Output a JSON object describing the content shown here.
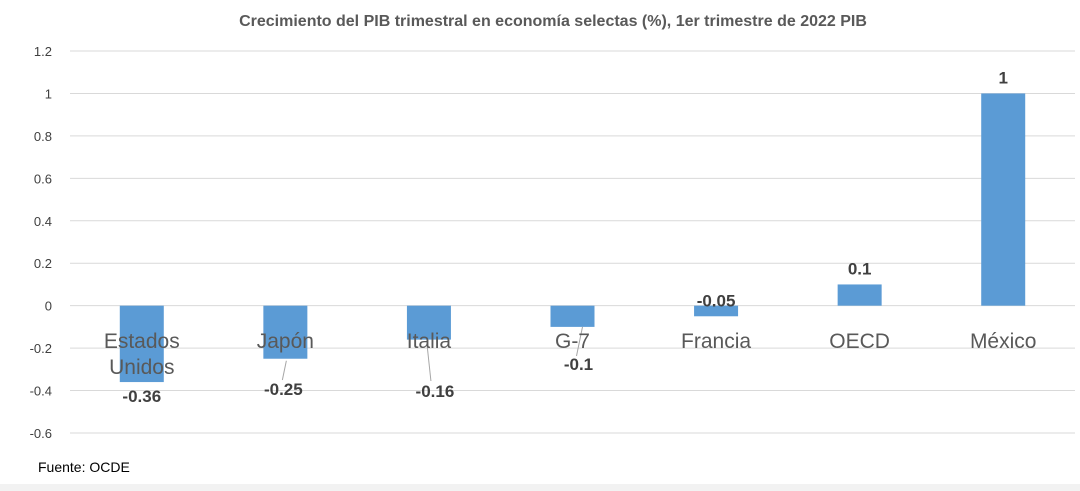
{
  "chart_data": {
    "type": "bar",
    "title": "Crecimiento del PIB trimestral en economía selectas (%), 1er trimestre de 2022 PIB",
    "categories": [
      "Estados Unidos",
      "Japón",
      "Italia",
      "G-7",
      "Francia",
      "OECD",
      "México"
    ],
    "values": [
      -0.36,
      -0.25,
      -0.16,
      -0.1,
      -0.05,
      0.1,
      1
    ],
    "data_labels": [
      "-0.36",
      "-0.25",
      "-0.16",
      "-0.1",
      "-0.05",
      "0.1",
      "1"
    ],
    "ylim": [
      -0.6,
      1.2
    ],
    "yticks": [
      "1.2",
      "1",
      "0.8",
      "0.6",
      "0.4",
      "0.2",
      "0",
      "-0.2",
      "-0.4",
      "-0.6"
    ],
    "grid": true,
    "bar_color": "#5b9bd5"
  },
  "source": "Fuente: OCDE"
}
